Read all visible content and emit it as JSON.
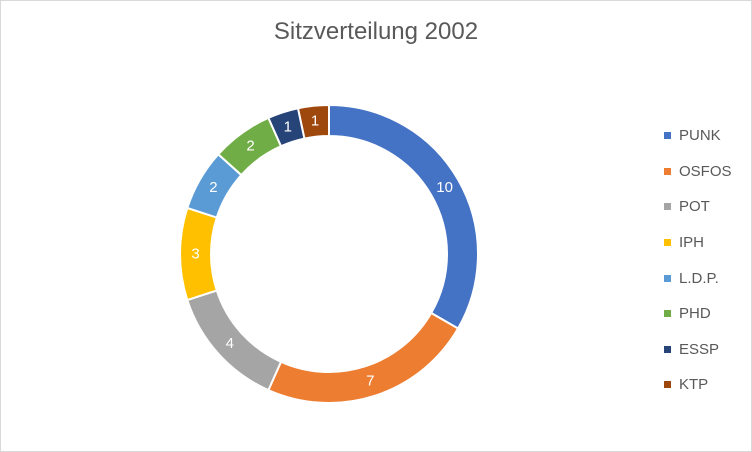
{
  "chart_data": {
    "type": "pie",
    "variant": "doughnut",
    "title": "Sitzverteilung 2002",
    "categories": [
      "PUNK",
      "OSFOS",
      "POT",
      "IPH",
      "L.D.P.",
      "PHD",
      "ESSP",
      "KTP"
    ],
    "values": [
      10,
      7,
      4,
      3,
      2,
      2,
      1,
      1
    ],
    "colors": [
      "#4472C4",
      "#ED7D31",
      "#A5A5A5",
      "#FFC000",
      "#5B9BD5",
      "#70AD47",
      "#264478",
      "#9E480E"
    ],
    "label_colors": [
      "#ffffff",
      "#ffffff",
      "#ffffff",
      "#ffffff",
      "#ffffff",
      "#ffffff",
      "#ffffff",
      "#ffffff"
    ],
    "legend_position": "right",
    "start_angle_deg": 0,
    "direction": "clockwise"
  }
}
